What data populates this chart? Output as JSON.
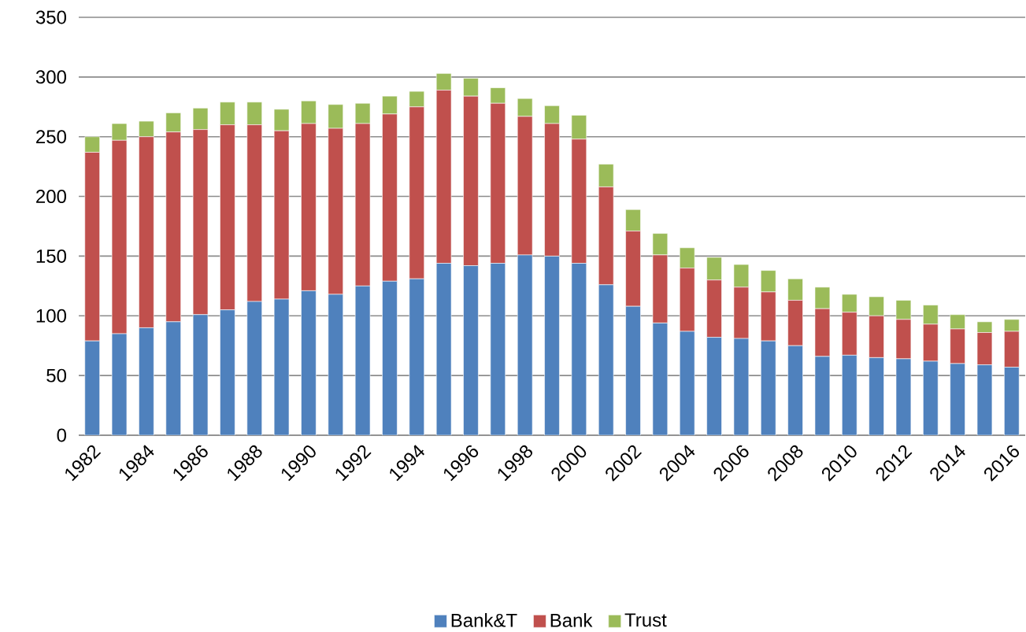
{
  "chart_data": {
    "type": "bar",
    "stacked": true,
    "categories": [
      "1982",
      null,
      "1984",
      null,
      "1986",
      null,
      "1988",
      null,
      "1990",
      null,
      "1992",
      null,
      "1994",
      null,
      "1996",
      null,
      "1998",
      null,
      "2000",
      null,
      "2002",
      null,
      "2004",
      null,
      "2006",
      null,
      "2008",
      null,
      "2010",
      null,
      "2012",
      null,
      "2014",
      null,
      "2016"
    ],
    "series": [
      {
        "name": "Bank&T",
        "color": "#4f81bd",
        "values": [
          79,
          85,
          90,
          95,
          101,
          105,
          112,
          114,
          121,
          118,
          125,
          129,
          131,
          144,
          142,
          144,
          151,
          150,
          144,
          126,
          108,
          94,
          87,
          82,
          81,
          79,
          75,
          66,
          67,
          65,
          64,
          62,
          60,
          59,
          57
        ]
      },
      {
        "name": "Bank",
        "color": "#c0504d",
        "values": [
          158,
          162,
          160,
          159,
          155,
          155,
          148,
          141,
          140,
          139,
          136,
          140,
          144,
          145,
          142,
          134,
          116,
          111,
          104,
          82,
          63,
          57,
          53,
          48,
          43,
          41,
          38,
          40,
          36,
          35,
          33,
          31,
          29,
          27,
          30
        ]
      },
      {
        "name": "Trust",
        "color": "#9bbb59",
        "values": [
          13,
          14,
          13,
          16,
          18,
          19,
          19,
          18,
          19,
          20,
          17,
          15,
          13,
          14,
          15,
          13,
          15,
          15,
          20,
          19,
          18,
          18,
          17,
          19,
          19,
          18,
          18,
          18,
          15,
          16,
          16,
          16,
          12,
          9,
          10
        ]
      }
    ],
    "ylim": [
      0,
      350
    ],
    "yticks": [
      0,
      50,
      100,
      150,
      200,
      250,
      300,
      350
    ],
    "grid": "y",
    "legend": "bottom"
  }
}
